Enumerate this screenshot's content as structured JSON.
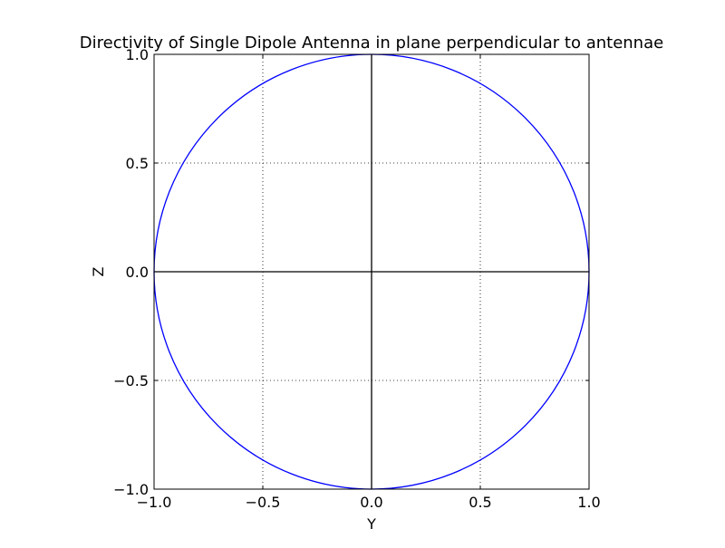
{
  "chart_data": {
    "type": "line",
    "title": "Directivity of Single Dipole Antenna in plane perpendicular to antennae",
    "xlabel": "Y",
    "ylabel": "Z",
    "xlim": [
      -1.0,
      1.0
    ],
    "ylim": [
      -1.0,
      1.0
    ],
    "x_ticks": [
      -1.0,
      -0.5,
      0.0,
      0.5,
      1.0
    ],
    "y_ticks": [
      -1.0,
      -0.5,
      0.0,
      0.5,
      1.0
    ],
    "x_tick_labels": [
      "−1.0",
      "−0.5",
      "0.0",
      "0.5",
      "1.0"
    ],
    "y_tick_labels": [
      "−1.0",
      "−0.5",
      "0.0",
      "0.5",
      "1.0"
    ],
    "grid": true,
    "axis_lines": [
      {
        "orientation": "horizontal",
        "value": 0.0,
        "color": "#000000"
      },
      {
        "orientation": "vertical",
        "value": 0.0,
        "color": "#000000"
      }
    ],
    "series": [
      {
        "color": "#0000ff",
        "shape": "unit circle",
        "radius": 1.0,
        "center": [
          0.0,
          0.0
        ],
        "x": [
          1.0,
          0.924,
          0.707,
          0.383,
          0.0,
          -0.383,
          -0.707,
          -0.924,
          -1.0,
          -0.924,
          -0.707,
          -0.383,
          0.0,
          0.383,
          0.707,
          0.924,
          1.0
        ],
        "y": [
          0.0,
          0.383,
          0.707,
          0.924,
          1.0,
          0.924,
          0.707,
          0.383,
          0.0,
          -0.383,
          -0.707,
          -0.924,
          -1.0,
          -0.924,
          -0.707,
          -0.383,
          0.0
        ]
      }
    ]
  }
}
